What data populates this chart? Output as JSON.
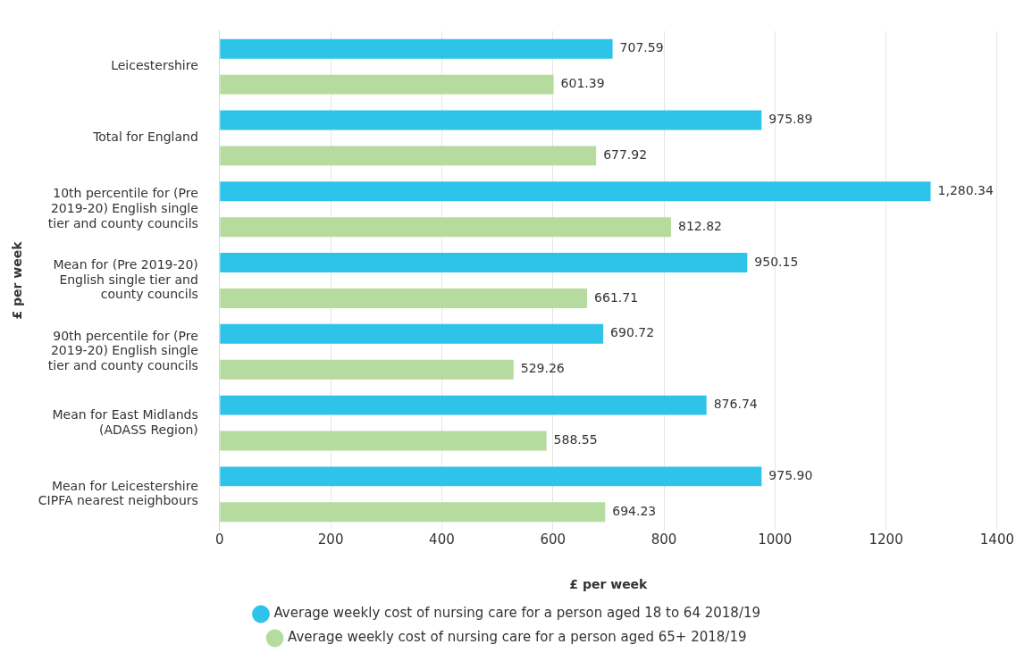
{
  "chart_data": {
    "type": "bar",
    "orientation": "horizontal",
    "xlabel": "£ per week",
    "ylabel": "£ per week",
    "categories": [
      "Leicestershire",
      "Total for England",
      "10th percentile for (Pre 2019-20) English single tier and county councils",
      "Mean for (Pre 2019-20) English single tier and county councils",
      "90th percentile for (Pre 2019-20) English single tier and county councils",
      "Mean for East Midlands (ADASS Region)",
      "Mean for Leicestershire CIPFA nearest neighbours"
    ],
    "series": [
      {
        "name": "Average weekly cost of nursing care for a person aged 18 to 64 2018/19",
        "color": "#2ec4ea",
        "values": [
          707.59,
          975.89,
          1280.34,
          950.15,
          690.72,
          876.74,
          975.9
        ],
        "value_labels": [
          "707.59",
          "975.89",
          "1,280.34",
          "950.15",
          "690.72",
          "876.74",
          "975.90"
        ]
      },
      {
        "name": "Average weekly cost of nursing care for a person aged 65+ 2018/19",
        "color": "#b5dc9e",
        "values": [
          601.39,
          677.92,
          812.82,
          661.71,
          529.26,
          588.55,
          694.23
        ],
        "value_labels": [
          "601.39",
          "677.92",
          "812.82",
          "661.71",
          "529.26",
          "588.55",
          "694.23"
        ]
      }
    ],
    "xlim": [
      0,
      1400
    ],
    "xticks": [
      0,
      200,
      400,
      600,
      800,
      1000,
      1200,
      1400
    ],
    "grid": "x",
    "legend": "bottom"
  }
}
